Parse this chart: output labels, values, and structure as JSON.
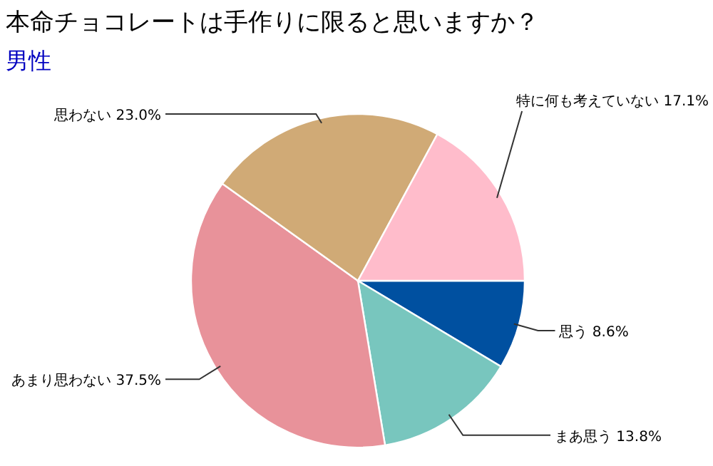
{
  "chart_data": {
    "type": "pie",
    "title": "本命チョコレートは手作りに限ると思いますか？",
    "subtitle": "男性",
    "categories": [
      "思う",
      "まあ思う",
      "あまり思わない",
      "思わない",
      "特に何も考えていない"
    ],
    "values": [
      8.6,
      13.8,
      37.5,
      23.0,
      17.1
    ],
    "value_labels": [
      "8.6%",
      "13.8%",
      "37.5%",
      "23.0%",
      "17.1%"
    ],
    "colors": [
      "#0050a0",
      "#78c6be",
      "#e8929a",
      "#d0aa76",
      "#ffbccb"
    ]
  }
}
